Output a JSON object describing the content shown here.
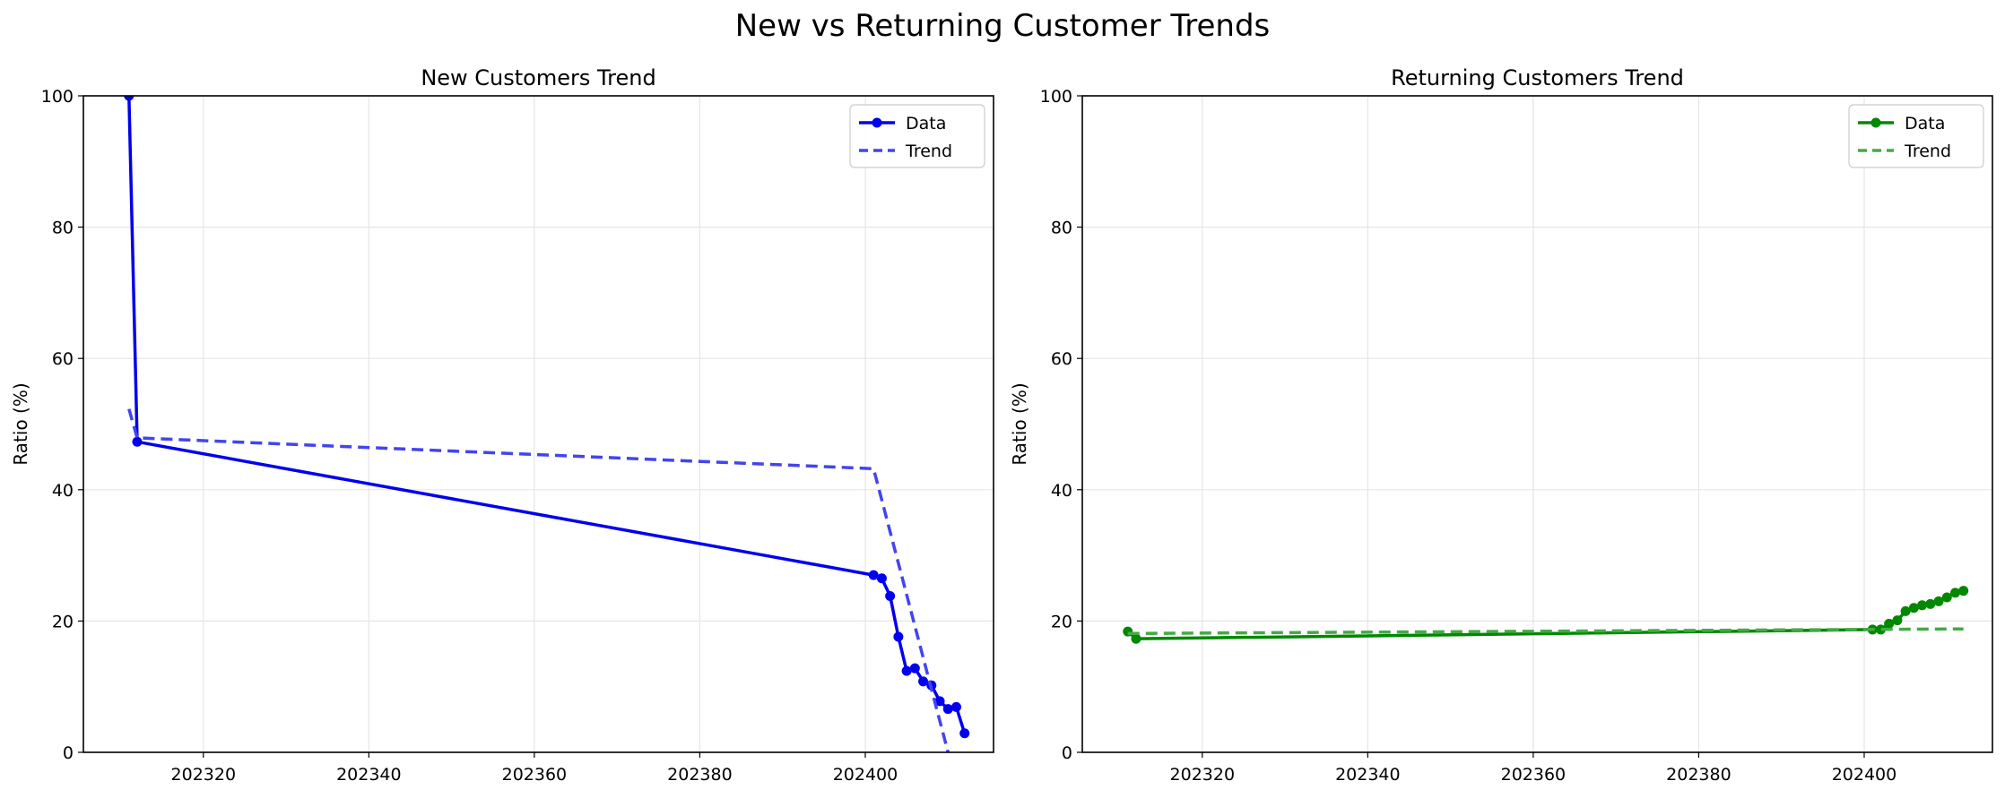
{
  "figure_title": "New vs Returning Customer Trends",
  "colors": {
    "new_data": "#0000ee",
    "new_trend": "#4444ee",
    "ret_data": "#008800",
    "ret_trend": "#44aa44",
    "grid": "#e6e6e6"
  },
  "chart_data": [
    {
      "type": "line",
      "title": "New Customers Trend",
      "xlabel": "",
      "ylabel": "Ratio (%)",
      "xlim": [
        202305.5,
        202415.5
      ],
      "ylim": [
        0,
        100
      ],
      "xticks": [
        202320,
        202340,
        202360,
        202380,
        202400
      ],
      "yticks": [
        0,
        20,
        40,
        60,
        80,
        100
      ],
      "xtick_labels": [
        "202320",
        "202340",
        "202360",
        "202380",
        "202400"
      ],
      "ytick_labels": [
        "0",
        "20",
        "40",
        "60",
        "80",
        "100"
      ],
      "grid": true,
      "legend": "top-right",
      "series": [
        {
          "name": "Data",
          "style": "solid-markers",
          "color": "#0000ee",
          "x": [
            202311,
            202312,
            202401,
            202402,
            202403,
            202404,
            202405,
            202406,
            202407,
            202408,
            202409,
            202410,
            202411,
            202412
          ],
          "y": [
            100,
            47.3,
            27.0,
            26.5,
            23.8,
            17.6,
            12.4,
            12.8,
            10.8,
            10.2,
            7.8,
            6.6,
            6.9,
            2.9
          ]
        },
        {
          "name": "Trend",
          "style": "dashed",
          "color": "#4444ee",
          "x": [
            202311,
            202312,
            202401,
            202410
          ],
          "y": [
            52.3,
            47.9,
            43.2,
            0
          ]
        }
      ]
    },
    {
      "type": "line",
      "title": "Returning Customers Trend",
      "xlabel": "",
      "ylabel": "Ratio (%)",
      "xlim": [
        202305.5,
        202415.5
      ],
      "ylim": [
        0,
        100
      ],
      "xticks": [
        202320,
        202340,
        202360,
        202380,
        202400
      ],
      "yticks": [
        0,
        20,
        40,
        60,
        80,
        100
      ],
      "xtick_labels": [
        "202320",
        "202340",
        "202360",
        "202380",
        "202400"
      ],
      "ytick_labels": [
        "0",
        "20",
        "40",
        "60",
        "80",
        "100"
      ],
      "grid": true,
      "legend": "top-right",
      "series": [
        {
          "name": "Data",
          "style": "solid-markers",
          "color": "#008800",
          "x": [
            202311,
            202312,
            202401,
            202402,
            202403,
            202404,
            202405,
            202406,
            202407,
            202408,
            202409,
            202410,
            202411,
            202412
          ],
          "y": [
            18.4,
            17.3,
            18.7,
            18.7,
            19.6,
            20.1,
            21.5,
            22.0,
            22.4,
            22.6,
            23.0,
            23.6,
            24.3,
            24.6
          ]
        },
        {
          "name": "Trend",
          "style": "dashed",
          "color": "#44aa44",
          "x": [
            202311,
            202412
          ],
          "y": [
            18.1,
            18.8
          ]
        }
      ]
    }
  ]
}
